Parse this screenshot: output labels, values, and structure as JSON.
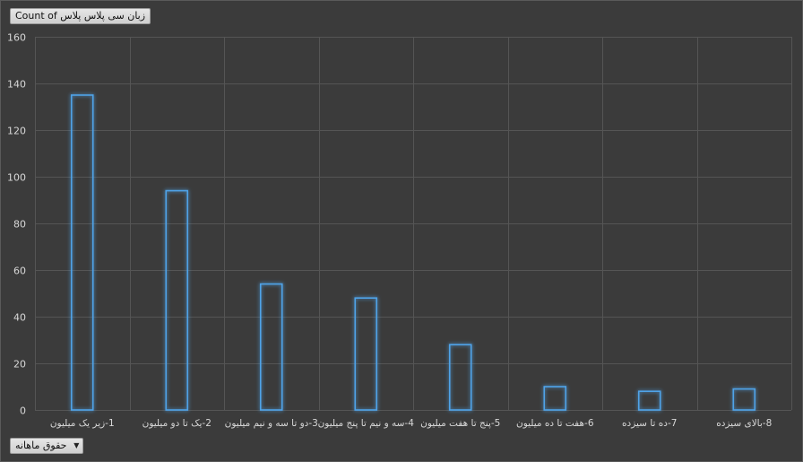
{
  "value_field_label": "Count of زبان سی پلاس پلاس",
  "axis_field_label": "حقوق ماهانه",
  "chart_data": {
    "type": "bar",
    "categories": [
      "1-زیر یک میلیون",
      "2-یک تا دو میلیون",
      "3-دو تا سه و نیم میلیون",
      "4-سه و نیم تا پنج میلیون",
      "5-پنج تا هفت میلیون",
      "6-هفت تا ده میلیون",
      "7-ده تا سیزده",
      "8-بالای سیزده"
    ],
    "values": [
      135,
      94,
      54,
      48,
      28,
      10,
      8,
      9
    ],
    "ylim": [
      0,
      160
    ],
    "yticks": [
      0,
      20,
      40,
      60,
      80,
      100,
      120,
      140,
      160
    ],
    "grid": true,
    "colors": {
      "bar_edge": "#4fa3e8",
      "bar_glow": "#2a7fd4",
      "grid": "#555555",
      "plot_bg": "#3b3b3b"
    }
  }
}
